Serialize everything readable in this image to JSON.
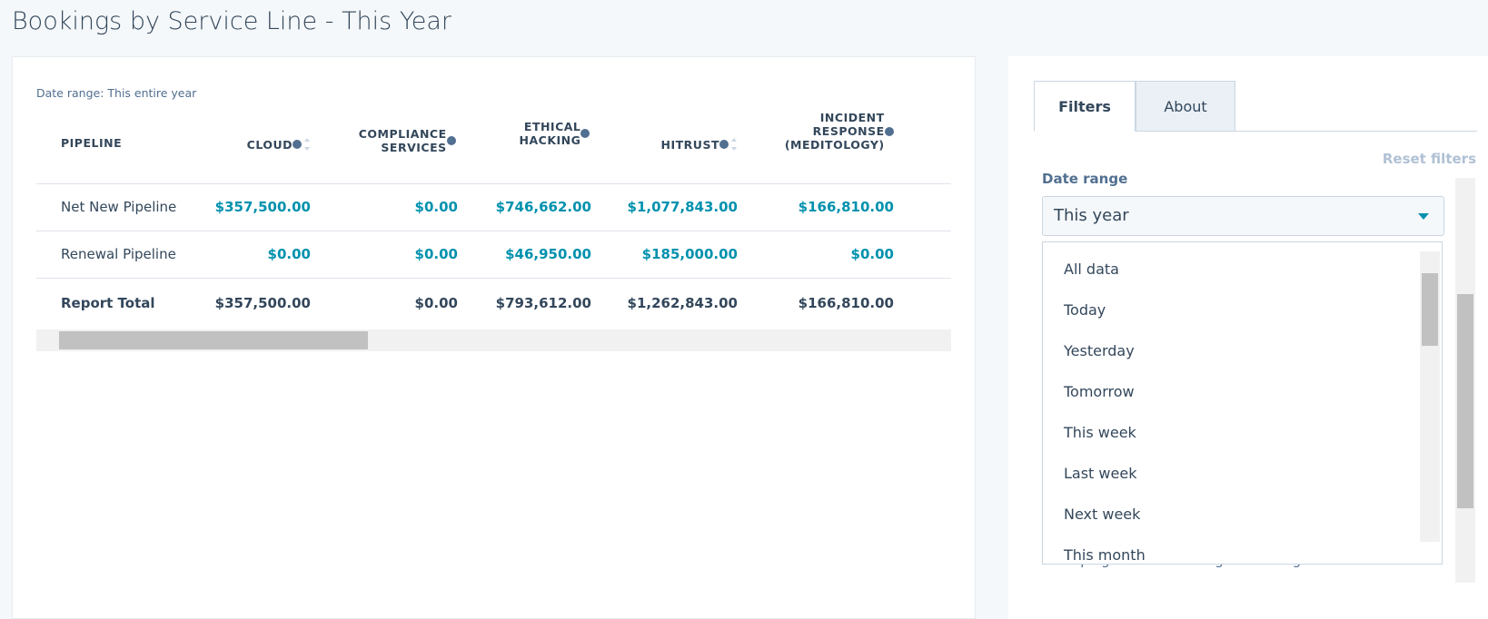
{
  "header": {
    "title": "Bookings by Service Line - This Year"
  },
  "table": {
    "date_range": "Date range: This entire year",
    "columns": [
      "PIPELINE",
      "CLOUD",
      "COMPLIANCE SERVICES",
      "ETHICAL HACKING",
      "HITRUST",
      "INCIDENT RESPONSE (MEDITOLOGY)"
    ],
    "rows": [
      [
        "Net New Pipeline",
        "$357,500.00",
        "$0.00",
        "$746,662.00",
        "$1,077,843.00",
        "$166,810.00"
      ],
      [
        "Renewal Pipeline",
        "$0.00",
        "$0.00",
        "$46,950.00",
        "$185,000.00",
        "$0.00"
      ],
      [
        "Report Total",
        "$357,500.00",
        "$0.00",
        "$793,612.00",
        "$1,262,843.00",
        "$166,810.00"
      ]
    ]
  },
  "filters": {
    "tabs": [
      "Filters",
      "About"
    ],
    "reset": "Reset filters",
    "date_range_label": "Date range",
    "selected": "This year",
    "options": [
      "All data",
      "Today",
      "Yesterday",
      "Tomorrow",
      "This week",
      "Last week",
      "Next week",
      "This month"
    ],
    "hidden_text": "Campaign of last booking in meetings tool"
  }
}
